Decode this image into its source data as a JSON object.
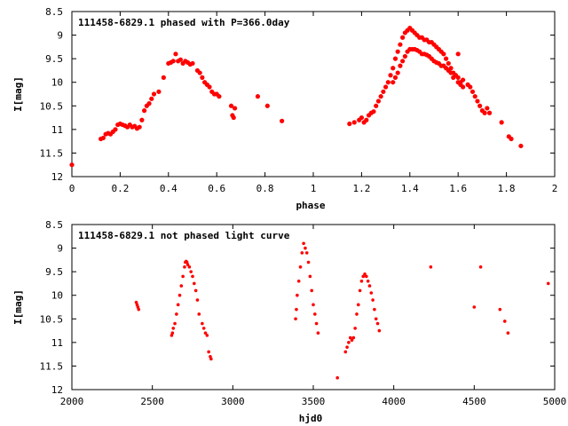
{
  "chart_data": [
    {
      "type": "scatter",
      "title": "111458-6829.1 phased with P=366.0day",
      "xlabel": "phase",
      "ylabel": "I[mag]",
      "xlim": [
        0,
        2
      ],
      "ylim": [
        12,
        8.5
      ],
      "y_inverted": true,
      "xticks": [
        "0",
        "0.2",
        "0.4",
        "0.6",
        "0.8",
        "1",
        "1.2",
        "1.4",
        "1.6",
        "1.8",
        "2"
      ],
      "yticks": [
        "8.5",
        "9",
        "9.5",
        "10",
        "10.5",
        "11",
        "11.5",
        "12"
      ],
      "marker_color": "#ff0000",
      "grid": false,
      "series": [
        {
          "points": [
            [
              0.0,
              11.75
            ],
            [
              0.12,
              11.2
            ],
            [
              0.13,
              11.18
            ],
            [
              0.14,
              11.1
            ],
            [
              0.15,
              11.08
            ],
            [
              0.16,
              11.1
            ],
            [
              0.17,
              11.05
            ],
            [
              0.18,
              11.0
            ],
            [
              0.19,
              10.9
            ],
            [
              0.2,
              10.88
            ],
            [
              0.21,
              10.9
            ],
            [
              0.22,
              10.92
            ],
            [
              0.23,
              10.95
            ],
            [
              0.24,
              10.9
            ],
            [
              0.25,
              10.95
            ],
            [
              0.26,
              10.93
            ],
            [
              0.27,
              10.98
            ],
            [
              0.28,
              10.95
            ],
            [
              0.29,
              10.8
            ],
            [
              0.3,
              10.6
            ],
            [
              0.31,
              10.5
            ],
            [
              0.32,
              10.45
            ],
            [
              0.33,
              10.35
            ],
            [
              0.34,
              10.25
            ],
            [
              0.36,
              10.2
            ],
            [
              0.38,
              9.9
            ],
            [
              0.4,
              9.6
            ],
            [
              0.41,
              9.58
            ],
            [
              0.42,
              9.55
            ],
            [
              0.43,
              9.4
            ],
            [
              0.44,
              9.55
            ],
            [
              0.45,
              9.52
            ],
            [
              0.46,
              9.6
            ],
            [
              0.47,
              9.55
            ],
            [
              0.48,
              9.58
            ],
            [
              0.49,
              9.62
            ],
            [
              0.5,
              9.6
            ],
            [
              0.52,
              9.75
            ],
            [
              0.53,
              9.8
            ],
            [
              0.54,
              9.9
            ],
            [
              0.55,
              10.0
            ],
            [
              0.56,
              10.05
            ],
            [
              0.57,
              10.1
            ],
            [
              0.58,
              10.2
            ],
            [
              0.59,
              10.25
            ],
            [
              0.6,
              10.25
            ],
            [
              0.61,
              10.3
            ],
            [
              0.66,
              10.5
            ],
            [
              0.665,
              10.7
            ],
            [
              0.67,
              10.75
            ],
            [
              0.675,
              10.55
            ],
            [
              0.77,
              10.3
            ],
            [
              0.81,
              10.5
            ],
            [
              0.87,
              10.82
            ],
            [
              1.15,
              10.88
            ],
            [
              1.17,
              10.85
            ],
            [
              1.19,
              10.8
            ],
            [
              1.2,
              10.75
            ],
            [
              1.21,
              10.85
            ],
            [
              1.22,
              10.8
            ],
            [
              1.23,
              10.7
            ],
            [
              1.24,
              10.65
            ],
            [
              1.25,
              10.62
            ],
            [
              1.26,
              10.5
            ],
            [
              1.27,
              10.4
            ],
            [
              1.28,
              10.3
            ],
            [
              1.29,
              10.2
            ],
            [
              1.3,
              10.1
            ],
            [
              1.31,
              10.0
            ],
            [
              1.32,
              9.85
            ],
            [
              1.33,
              9.7
            ],
            [
              1.34,
              9.5
            ],
            [
              1.35,
              9.35
            ],
            [
              1.36,
              9.2
            ],
            [
              1.37,
              9.05
            ],
            [
              1.38,
              8.95
            ],
            [
              1.39,
              8.9
            ],
            [
              1.4,
              8.85
            ],
            [
              1.41,
              8.9
            ],
            [
              1.42,
              8.95
            ],
            [
              1.43,
              9.0
            ],
            [
              1.44,
              9.05
            ],
            [
              1.45,
              9.05
            ],
            [
              1.46,
              9.1
            ],
            [
              1.47,
              9.1
            ],
            [
              1.48,
              9.15
            ],
            [
              1.49,
              9.15
            ],
            [
              1.5,
              9.2
            ],
            [
              1.51,
              9.25
            ],
            [
              1.52,
              9.3
            ],
            [
              1.53,
              9.35
            ],
            [
              1.54,
              9.4
            ],
            [
              1.55,
              9.5
            ],
            [
              1.56,
              9.6
            ],
            [
              1.57,
              9.7
            ],
            [
              1.58,
              9.8
            ],
            [
              1.59,
              9.85
            ],
            [
              1.6,
              9.9
            ],
            [
              1.61,
              10.0
            ],
            [
              1.33,
              10.0
            ],
            [
              1.34,
              9.9
            ],
            [
              1.35,
              9.8
            ],
            [
              1.36,
              9.65
            ],
            [
              1.37,
              9.55
            ],
            [
              1.38,
              9.45
            ],
            [
              1.39,
              9.35
            ],
            [
              1.4,
              9.3
            ],
            [
              1.41,
              9.3
            ],
            [
              1.42,
              9.3
            ],
            [
              1.43,
              9.32
            ],
            [
              1.44,
              9.35
            ],
            [
              1.45,
              9.4
            ],
            [
              1.46,
              9.4
            ],
            [
              1.47,
              9.42
            ],
            [
              1.48,
              9.45
            ],
            [
              1.49,
              9.5
            ],
            [
              1.5,
              9.55
            ],
            [
              1.51,
              9.58
            ],
            [
              1.52,
              9.6
            ],
            [
              1.53,
              9.65
            ],
            [
              1.54,
              9.65
            ],
            [
              1.55,
              9.7
            ],
            [
              1.56,
              9.75
            ],
            [
              1.57,
              9.8
            ],
            [
              1.58,
              9.9
            ],
            [
              1.6,
              10.0
            ],
            [
              1.61,
              10.05
            ],
            [
              1.62,
              10.1
            ],
            [
              1.6,
              9.4
            ],
            [
              1.62,
              9.95
            ],
            [
              1.64,
              10.05
            ],
            [
              1.65,
              10.1
            ],
            [
              1.66,
              10.2
            ],
            [
              1.67,
              10.3
            ],
            [
              1.68,
              10.4
            ],
            [
              1.69,
              10.5
            ],
            [
              1.7,
              10.6
            ],
            [
              1.71,
              10.65
            ],
            [
              1.72,
              10.55
            ],
            [
              1.73,
              10.65
            ],
            [
              1.78,
              10.85
            ],
            [
              1.81,
              11.15
            ],
            [
              1.82,
              11.2
            ],
            [
              1.86,
              11.35
            ]
          ]
        }
      ]
    },
    {
      "type": "scatter",
      "title": "111458-6829.1 not phased light curve",
      "xlabel": "hjd0",
      "ylabel": "I[mag]",
      "xlim": [
        2000,
        5000
      ],
      "ylim": [
        12,
        8.5
      ],
      "y_inverted": true,
      "xticks": [
        "2000",
        "2500",
        "3000",
        "3500",
        "4000",
        "4500",
        "5000"
      ],
      "yticks": [
        "8.5",
        "9",
        "9.5",
        "10",
        "10.5",
        "11",
        "11.5",
        "12"
      ],
      "marker_color": "#ff0000",
      "grid": false,
      "series": [
        {
          "points": [
            [
              2400,
              10.15
            ],
            [
              2405,
              10.2
            ],
            [
              2410,
              10.25
            ],
            [
              2415,
              10.3
            ],
            [
              2620,
              10.85
            ],
            [
              2625,
              10.8
            ],
            [
              2630,
              10.7
            ],
            [
              2640,
              10.6
            ],
            [
              2650,
              10.4
            ],
            [
              2660,
              10.2
            ],
            [
              2670,
              10.0
            ],
            [
              2680,
              9.8
            ],
            [
              2690,
              9.6
            ],
            [
              2700,
              9.4
            ],
            [
              2705,
              9.3
            ],
            [
              2710,
              9.28
            ],
            [
              2715,
              9.3
            ],
            [
              2720,
              9.35
            ],
            [
              2730,
              9.4
            ],
            [
              2740,
              9.5
            ],
            [
              2750,
              9.6
            ],
            [
              2760,
              9.75
            ],
            [
              2770,
              9.9
            ],
            [
              2780,
              10.1
            ],
            [
              2790,
              10.4
            ],
            [
              2810,
              10.6
            ],
            [
              2820,
              10.7
            ],
            [
              2830,
              10.8
            ],
            [
              2840,
              10.85
            ],
            [
              2850,
              11.2
            ],
            [
              2860,
              11.3
            ],
            [
              2865,
              11.35
            ],
            [
              3390,
              10.5
            ],
            [
              3395,
              10.3
            ],
            [
              3400,
              10.0
            ],
            [
              3410,
              9.7
            ],
            [
              3420,
              9.4
            ],
            [
              3430,
              9.1
            ],
            [
              3440,
              8.9
            ],
            [
              3450,
              9.0
            ],
            [
              3460,
              9.1
            ],
            [
              3470,
              9.3
            ],
            [
              3480,
              9.6
            ],
            [
              3490,
              9.9
            ],
            [
              3500,
              10.2
            ],
            [
              3510,
              10.4
            ],
            [
              3520,
              10.6
            ],
            [
              3530,
              10.8
            ],
            [
              3650,
              11.75
            ],
            [
              3700,
              11.2
            ],
            [
              3710,
              11.1
            ],
            [
              3720,
              11.0
            ],
            [
              3730,
              10.9
            ],
            [
              3740,
              10.95
            ],
            [
              3750,
              10.9
            ],
            [
              3760,
              10.7
            ],
            [
              3770,
              10.4
            ],
            [
              3780,
              10.2
            ],
            [
              3790,
              9.9
            ],
            [
              3800,
              9.7
            ],
            [
              3810,
              9.6
            ],
            [
              3820,
              9.55
            ],
            [
              3830,
              9.6
            ],
            [
              3840,
              9.7
            ],
            [
              3850,
              9.8
            ],
            [
              3860,
              9.95
            ],
            [
              3870,
              10.1
            ],
            [
              3880,
              10.3
            ],
            [
              3890,
              10.5
            ],
            [
              3900,
              10.6
            ],
            [
              3910,
              10.75
            ],
            [
              4230,
              9.4
            ],
            [
              4500,
              10.25
            ],
            [
              4540,
              9.4
            ],
            [
              4660,
              10.3
            ],
            [
              4690,
              10.55
            ],
            [
              4710,
              10.8
            ],
            [
              4960,
              9.75
            ]
          ]
        }
      ]
    }
  ]
}
